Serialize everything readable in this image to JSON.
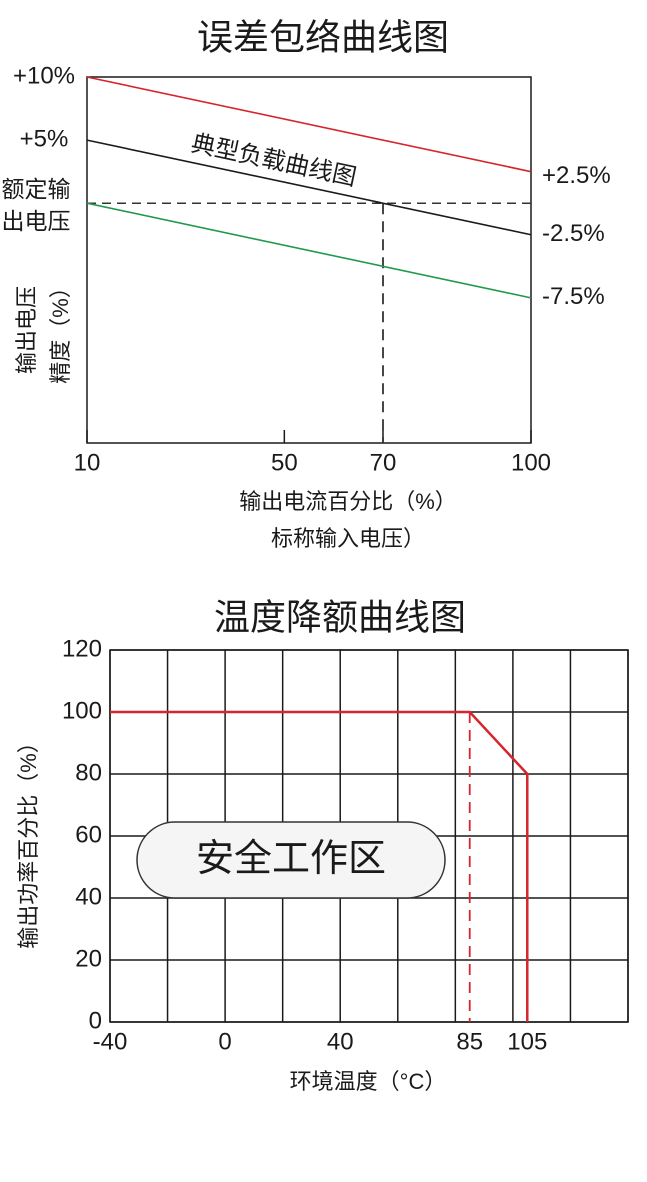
{
  "chart_data": [
    {
      "type": "line",
      "title": "误差包络曲线图",
      "x": [
        10,
        100
      ],
      "series": [
        {
          "color": "#d6252b",
          "values": [
            10,
            2.5
          ]
        },
        {
          "name": "典型负载曲线图",
          "color": "#1a1a1a",
          "values": [
            5,
            -2.5
          ]
        },
        {
          "color": "#1f9a4a",
          "values": [
            0,
            -7.5
          ]
        }
      ],
      "xlim": [
        10,
        100
      ],
      "xticks": [
        10,
        50,
        70,
        100
      ],
      "ylim": [
        -19,
        10
      ],
      "yticks": [
        {
          "value": 10,
          "label": "+10%"
        },
        {
          "value": 5,
          "label": "+5%"
        },
        {
          "value": 0,
          "label": "额定输出电压"
        }
      ],
      "y2lim": [
        -19,
        10
      ],
      "y2ticks": [
        {
          "value": 2.5,
          "label": "+2.5%"
        },
        {
          "value": -2.5,
          "label": "-2.5%"
        },
        {
          "value": -7.5,
          "label": "-7.5%"
        }
      ],
      "ylabel": [
        "输出电压",
        "精度（%）"
      ],
      "xlabel": [
        "输出电流百分比（%）",
        "标称输入电压）"
      ],
      "dashed_x": 70,
      "dashed_y": 0
    },
    {
      "type": "line",
      "title": "温度降额曲线图",
      "x": [
        -40,
        85,
        105,
        105
      ],
      "series": [
        {
          "color": "#d6252b",
          "values": [
            100,
            100,
            80,
            0
          ]
        }
      ],
      "xlim": [
        -40,
        140
      ],
      "xticks": [
        -40,
        0,
        40,
        85,
        105
      ],
      "xgrid": [
        -40,
        -20,
        0,
        20,
        40,
        60,
        80,
        100,
        120,
        140
      ],
      "ylim": [
        0,
        120
      ],
      "yticks": [
        0,
        20,
        40,
        60,
        80,
        100,
        120
      ],
      "grid": true,
      "ylabel": "输出功率百分比（%）",
      "xlabel": "环境温度（°C）",
      "annotation": "安全工作区",
      "dashed_x": 85
    }
  ]
}
